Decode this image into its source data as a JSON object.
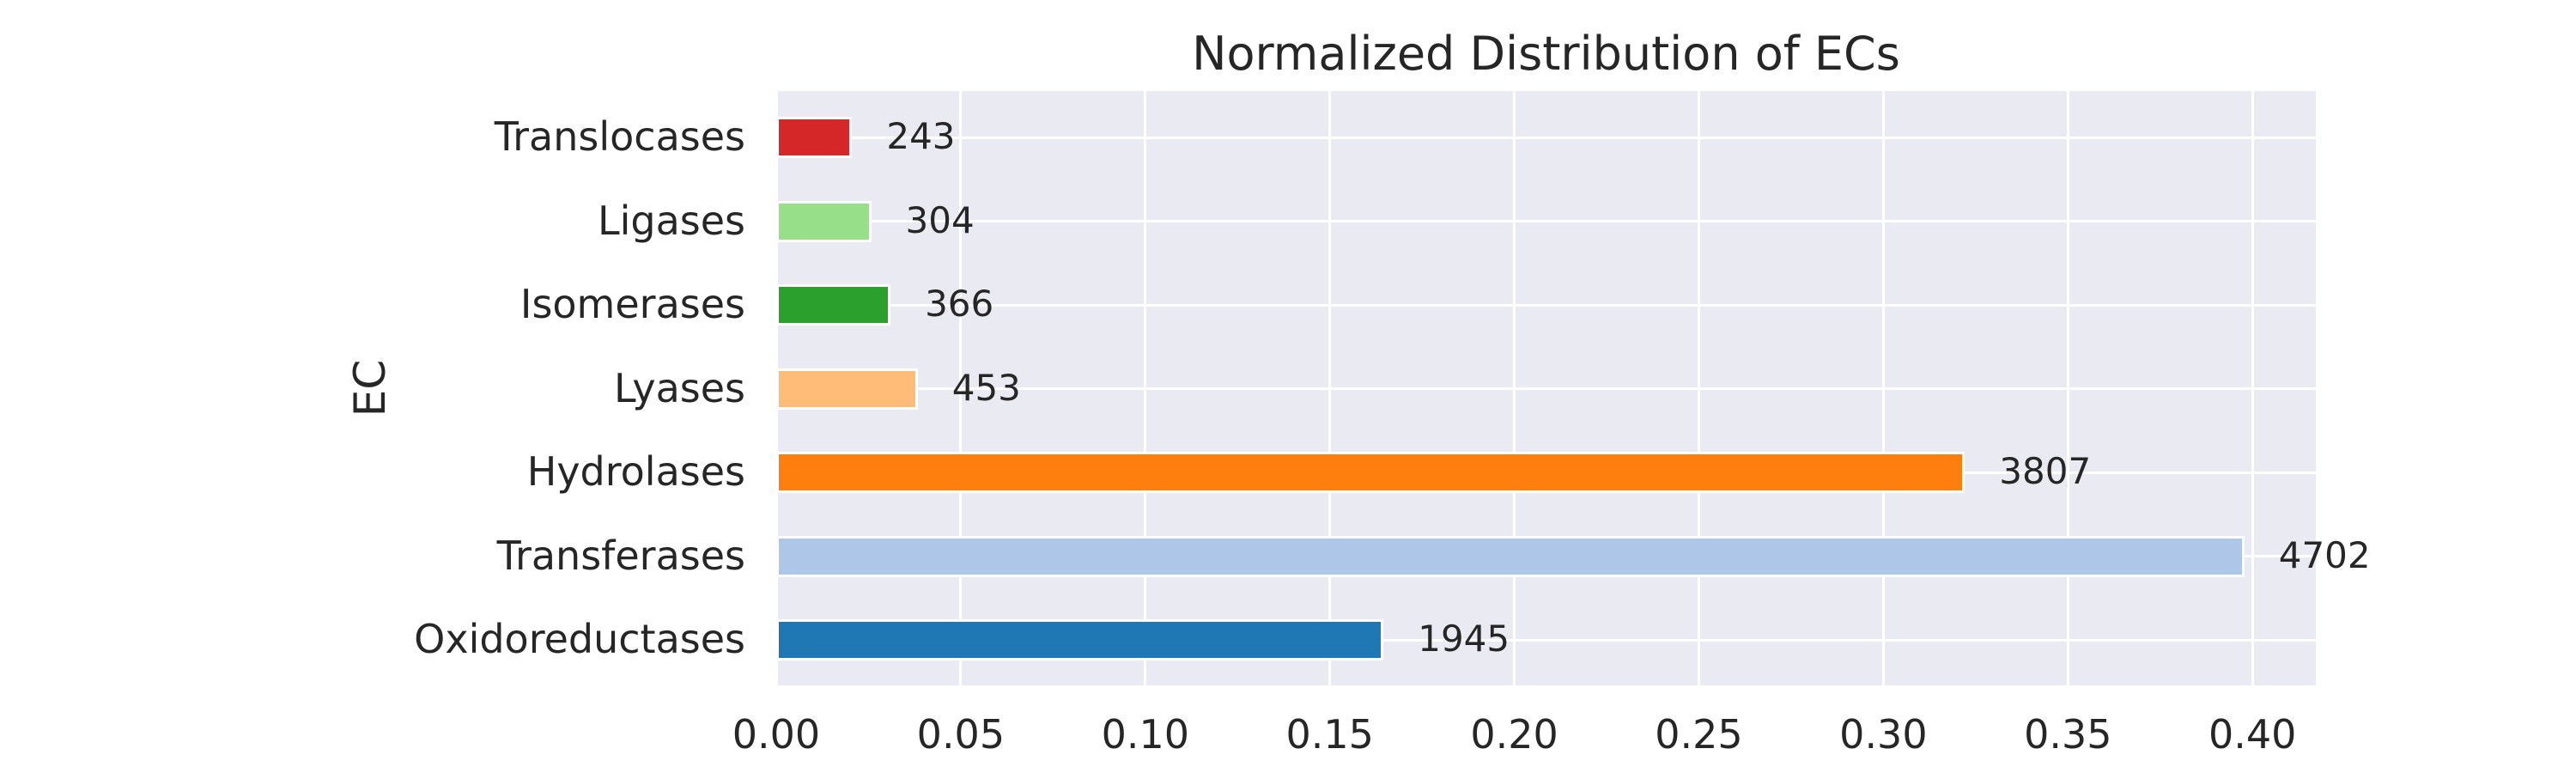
{
  "chart_data": {
    "type": "bar",
    "orientation": "horizontal",
    "title": "Normalized Distribution of ECs",
    "xlabel": "",
    "ylabel": "EC",
    "categories": [
      "Translocases",
      "Ligases",
      "Isomerases",
      "Lyases",
      "Hydrolases",
      "Transferases",
      "Oxidoreductases"
    ],
    "counts": [
      243,
      304,
      366,
      453,
      3807,
      4702,
      1945
    ],
    "bar_labels": [
      "243",
      "304",
      "366",
      "453",
      "3807",
      "4702",
      "1945"
    ],
    "normalized_values": [
      0.0206,
      0.0257,
      0.031,
      0.0383,
      0.3221,
      0.3978,
      0.1645
    ],
    "bar_colors": [
      "#d62728",
      "#98df8a",
      "#2ca02c",
      "#ffbb78",
      "#ff7f0e",
      "#aec7e8",
      "#1f77b4"
    ],
    "x_ticks": [
      "0.00",
      "0.05",
      "0.10",
      "0.15",
      "0.20",
      "0.25",
      "0.30",
      "0.35",
      "0.40"
    ],
    "x_tick_values": [
      0.0,
      0.05,
      0.1,
      0.15,
      0.2,
      0.25,
      0.3,
      0.35,
      0.4
    ],
    "xlim": [
      0.0,
      0.4172
    ],
    "grid": true,
    "legend": false,
    "styles": {
      "figure_bg": "#ffffff",
      "plot_bg": "#eaeaf2",
      "grid_color": "#ffffff",
      "bar_edge_color": "#ffffff",
      "text_color": "#262626"
    }
  }
}
